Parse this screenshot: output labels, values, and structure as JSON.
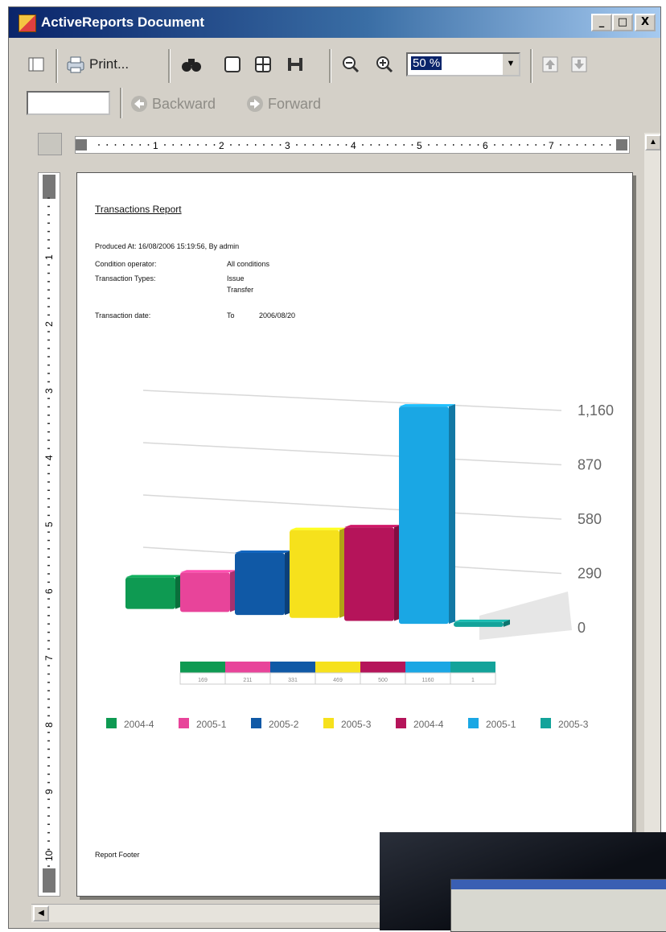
{
  "window": {
    "title": "ActiveReports Document",
    "controls": {
      "minimize": "_",
      "maximize": "□",
      "close": "X"
    }
  },
  "toolbar": {
    "print_label": "Print...",
    "zoom_value": "50 %",
    "backward_label": "Backward",
    "forward_label": "Forward",
    "page_input_value": ""
  },
  "ruler": {
    "top_numbers": [
      "1",
      "2",
      "3",
      "4",
      "5",
      "6",
      "7"
    ],
    "left_numbers": [
      "1",
      "2",
      "3",
      "4",
      "5",
      "6",
      "7",
      "8",
      "9",
      "10"
    ]
  },
  "report": {
    "title": "Transactions Report",
    "produced": "Produced At: 16/08/2006 15:19:56, By admin",
    "fields": [
      {
        "label": "Condition operator:",
        "value": "All conditions"
      },
      {
        "label": "Transaction Types:",
        "value": "Issue"
      },
      {
        "label": "",
        "value": "Transfer"
      }
    ],
    "date_label": "Transaction date:",
    "date_to": "To",
    "date_value": "2006/08/20",
    "footer": "Report Footer"
  },
  "chart_data": {
    "type": "bar",
    "categories": [
      "2004-4",
      "2005-1",
      "2005-2",
      "2005-3",
      "2004-4",
      "2005-1",
      "2005-3"
    ],
    "values": [
      169,
      211,
      331,
      469,
      500,
      1160,
      1
    ],
    "value_labels": [
      "169",
      "211",
      "331",
      "469",
      "500",
      "1160",
      "1"
    ],
    "colors": [
      "#0e9a52",
      "#e8449a",
      "#1059a6",
      "#f6e11c",
      "#b5145a",
      "#1aa7e4",
      "#13a39a"
    ],
    "ylim": [
      0,
      1160
    ],
    "yticks": [
      "0",
      "290",
      "580",
      "870",
      "1,160"
    ],
    "legend_position": "bottom",
    "grid": true,
    "style": "3d"
  }
}
